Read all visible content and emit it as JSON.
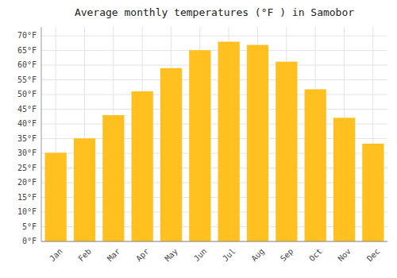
{
  "chart_data": {
    "type": "bar",
    "title": "Average monthly temperatures (°F ) in Samobor",
    "categories": [
      "Jan",
      "Feb",
      "Mar",
      "Apr",
      "May",
      "Jun",
      "Jul",
      "Aug",
      "Sep",
      "Oct",
      "Nov",
      "Dec"
    ],
    "values": [
      30.2,
      35.1,
      43.0,
      51.1,
      59.0,
      65.1,
      68.0,
      66.9,
      61.2,
      51.8,
      42.1,
      33.3
    ],
    "color": "#FFC020",
    "ylim": [
      0,
      73
    ],
    "yticks": [
      {
        "value": 0,
        "label": "0°F"
      },
      {
        "value": 5,
        "label": "5°F"
      },
      {
        "value": 10,
        "label": "10°F"
      },
      {
        "value": 15,
        "label": "15°F"
      },
      {
        "value": 20,
        "label": "20°F"
      },
      {
        "value": 25,
        "label": "25°F"
      },
      {
        "value": 30,
        "label": "30°F"
      },
      {
        "value": 35,
        "label": "35°F"
      },
      {
        "value": 40,
        "label": "40°F"
      },
      {
        "value": 45,
        "label": "45°F"
      },
      {
        "value": 50,
        "label": "50°F"
      },
      {
        "value": 55,
        "label": "55°F"
      },
      {
        "value": 60,
        "label": "60°F"
      },
      {
        "value": 65,
        "label": "65°F"
      },
      {
        "value": 70,
        "label": "70°F"
      }
    ],
    "grid": true
  }
}
